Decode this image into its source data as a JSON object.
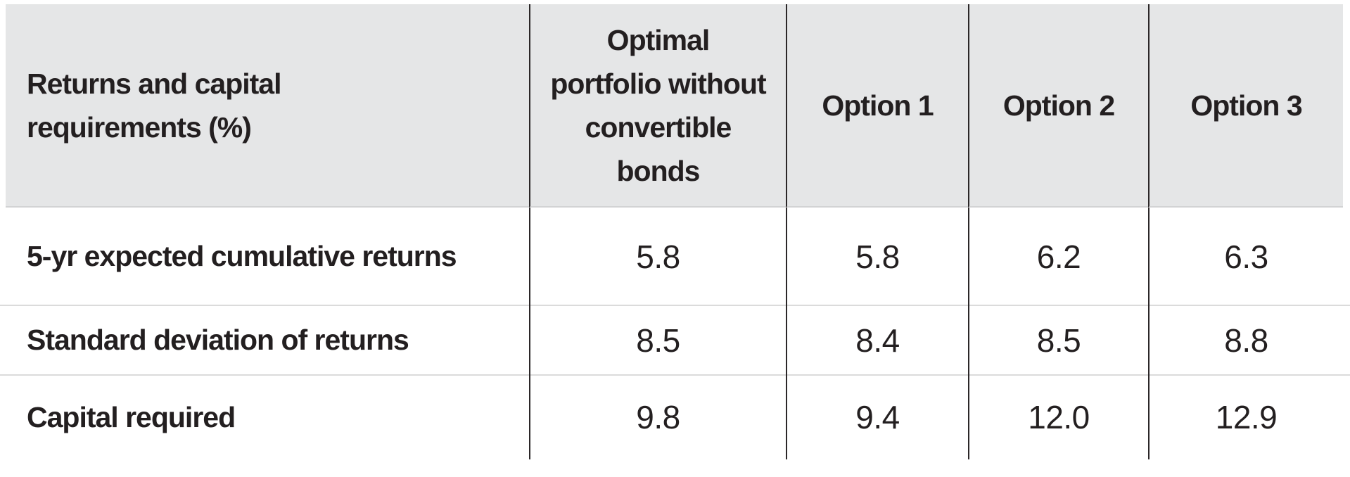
{
  "theme": {
    "header_bg": "#e5e6e7",
    "text": "#231f20",
    "divider_dark": "#2b2728",
    "separator_light": "#dbdbdb",
    "header_edge": "#d2d3d4",
    "page_bg": "#ffffff"
  },
  "table": {
    "header": {
      "row_label": "Returns and capital\nrequirements (%)",
      "columns": [
        "Optimal\nportfolio without\nconvertible\nbonds",
        "Option 1",
        "Option 2",
        "Option 3"
      ]
    },
    "rows": [
      {
        "label": "5-yr expected cumulative returns",
        "values": [
          "5.8",
          "5.8",
          "6.2",
          "6.3"
        ]
      },
      {
        "label": "Standard deviation of returns",
        "values": [
          "8.5",
          "8.4",
          "8.5",
          "8.8"
        ]
      },
      {
        "label": "Capital required",
        "values": [
          "9.8",
          "9.4",
          "12.0",
          "12.9"
        ]
      }
    ]
  },
  "chart_data": {
    "type": "table",
    "title": "Returns and capital requirements (%)",
    "columns": [
      "Returns and capital requirements (%)",
      "Optimal portfolio without convertible bonds",
      "Option 1",
      "Option 2",
      "Option 3"
    ],
    "rows": [
      {
        "label": "5-yr expected cumulative returns",
        "values": [
          5.8,
          5.8,
          6.2,
          6.3
        ]
      },
      {
        "label": "Standard deviation of returns",
        "values": [
          8.5,
          8.4,
          8.5,
          8.8
        ]
      },
      {
        "label": "Capital required",
        "values": [
          9.8,
          9.4,
          12.0,
          12.9
        ]
      }
    ]
  }
}
